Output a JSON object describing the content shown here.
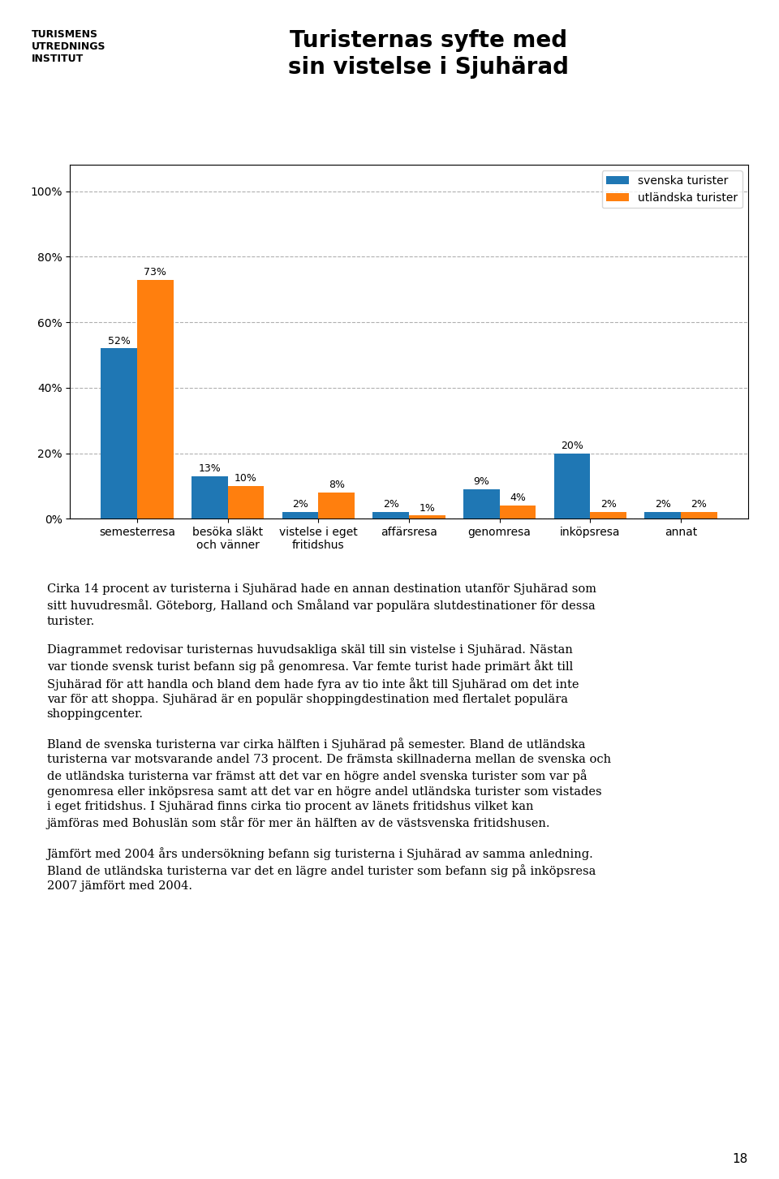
{
  "chart_data": {
    "type": "bar",
    "title": "Turisternas syfte med\nsin vistelse i Sjuhärad",
    "categories": [
      "semesterresa",
      "besöka släkt\noch vänner",
      "vistelse i eget\nfritidshus",
      "affärsresa",
      "genomresa",
      "inköpsresa",
      "annat"
    ],
    "series": [
      {
        "name": "svenska turister",
        "values": [
          52,
          13,
          2,
          2,
          9,
          20,
          2
        ],
        "value_labels": [
          "52%",
          "13%",
          "2%",
          "2%",
          "9%",
          "20%",
          "2%"
        ]
      },
      {
        "name": "utländska turister",
        "values": [
          73,
          10,
          8,
          1,
          4,
          2,
          2
        ],
        "value_labels": [
          "73%",
          "10%",
          "8%",
          "1%",
          "4%",
          "2%",
          "2%"
        ]
      }
    ],
    "ylim": [
      0,
      108
    ],
    "yticks": [
      {
        "value": 0,
        "label": "0%"
      },
      {
        "value": 20,
        "label": "20%"
      },
      {
        "value": 40,
        "label": "40%"
      },
      {
        "value": 60,
        "label": "60%"
      },
      {
        "value": 80,
        "label": "80%"
      },
      {
        "value": 100,
        "label": "100%"
      }
    ],
    "grid": true,
    "legend": "upper right",
    "data_labels": true,
    "annotations": [
      "TURISMENS\nUTREDNINGS\nINSTITUT",
      "Cirka 14 procent av turisterna i Sjuhärad hade en annan destination utanför Sjuhärad som sitt huvudresmål. Göteborg, Halland och Småland var populära slutdestinationer för dessa turister.",
      "Diagrammet redovisar turisternas huvudsakliga skäl till sin vistelse i Sjuhärad. Nästan var tionde svensk turist befann sig på genomresa. Var femte turist hade primärt åkt till Sjuhärad för att handla och bland dem hade fyra av tio inte åkt till Sjuhärad om det inte var för att shoppa. Sjuhärad är en populär shoppingdestination med flertalet populära shoppingcenter.",
      "Bland de svenska turisterna var cirka hälften i Sjuhärad på semester. Bland de utländska turisterna var motsvarande andel 73 procent. De främsta skillnaderna mellan de svenska och de utländska turisterna var främst att det var en högre andel svenska turister som var på genomresa eller inköpsresa samt att det var en högre andel utländska turister som vistades i eget fritidshus. I Sjuhärad finns cirka tio procent av länets fritidshus vilket kan jämföras med Bohuslän som står för mer än hälften av de västsvenska fritidshusen.",
      "Jämfört med 2004 års undersökning befann sig turisterna i Sjuhärad av samma anledning. Bland de utländska turisterna var det en lägre andel turister som befann sig på inköpsresa 2007 jämfört med 2004.",
      "18"
    ]
  }
}
